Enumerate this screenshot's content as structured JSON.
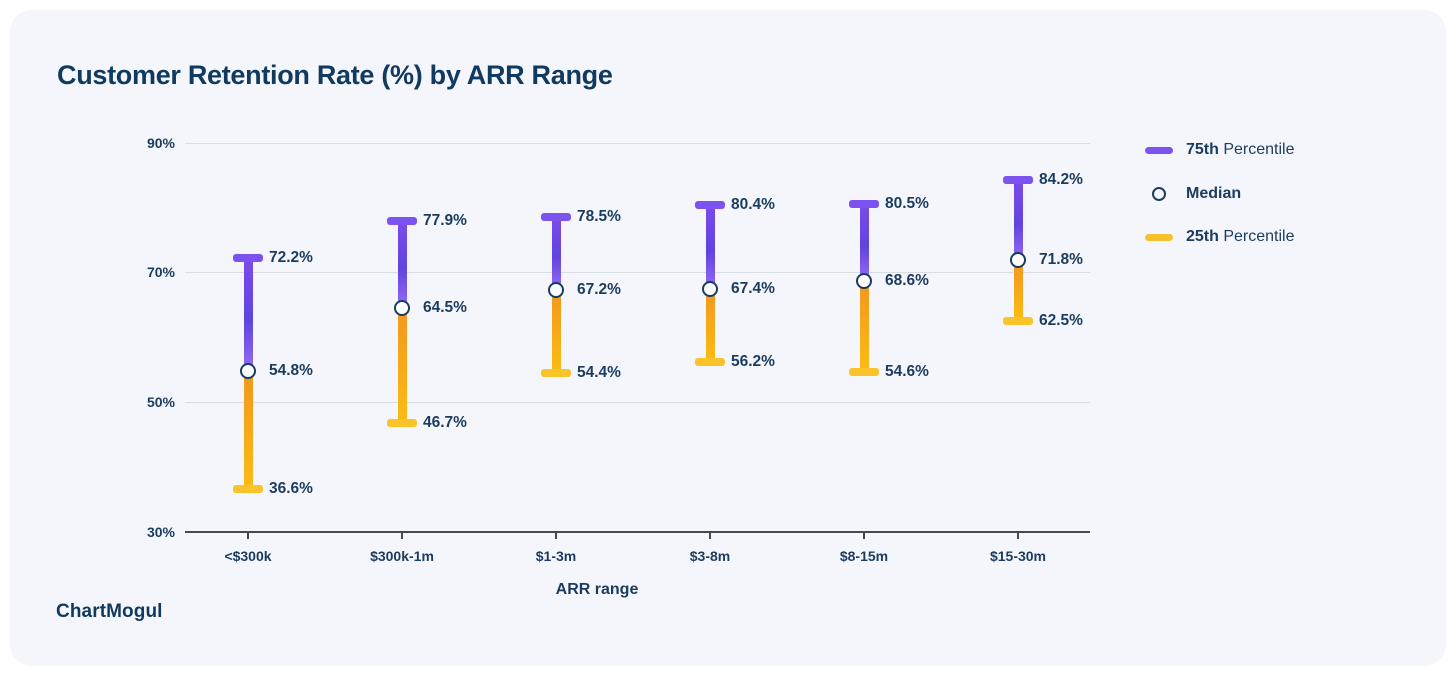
{
  "chart": {
    "title": "Customer Retention Rate (%) by ARR Range",
    "xlabel": "ARR range"
  },
  "chart_data": {
    "type": "range-bar",
    "title": "Customer Retention Rate (%) by ARR Range",
    "xlabel": "ARR range",
    "ylabel": "",
    "categories": [
      "<$300k",
      "$300k-1m",
      "$1-3m",
      "$3-8m",
      "$8-15m",
      "$15-30m"
    ],
    "series": [
      {
        "name": "75th Percentile",
        "values": [
          72.2,
          77.9,
          78.5,
          80.4,
          80.5,
          84.2
        ]
      },
      {
        "name": "Median",
        "values": [
          54.8,
          64.5,
          67.2,
          67.4,
          68.6,
          71.8
        ]
      },
      {
        "name": "25th Percentile",
        "values": [
          36.6,
          46.7,
          54.4,
          56.2,
          54.6,
          62.5
        ]
      }
    ],
    "value_label_format": "{value}%",
    "ylim": [
      30,
      90
    ],
    "yticks": [
      90,
      70,
      50,
      30
    ],
    "ytick_labels": [
      "90%",
      "70%",
      "50%",
      "30%"
    ],
    "grid": true,
    "legend_position": "right"
  },
  "legend": {
    "items": [
      {
        "icon": "purple-bar-swatch",
        "bold": "75th",
        "rest": " Percentile"
      },
      {
        "icon": "median-circle-swatch",
        "bold": "Median",
        "rest": ""
      },
      {
        "icon": "yellow-bar-swatch",
        "bold": "25th",
        "rest": " Percentile"
      }
    ]
  },
  "footer": {
    "logo_text": "ChartMogul"
  },
  "colors": {
    "card_bg": "#F4F6FB",
    "title_color": "#113A60",
    "navy_text": "#1B3C5F",
    "gridline": "#D8DCE3",
    "axis": "#414B57",
    "purple": "#7C52F1",
    "gold": "#F5C12B",
    "gold_cap": "#FAC32A",
    "stem_purple_top": "#7C4BEA",
    "stem_purple_mid": "#6044DD",
    "stem_purple_low": "#8E66F1",
    "stem_gold_top": "#F2991E",
    "stem_gold_bottom": "#FBBC13"
  }
}
